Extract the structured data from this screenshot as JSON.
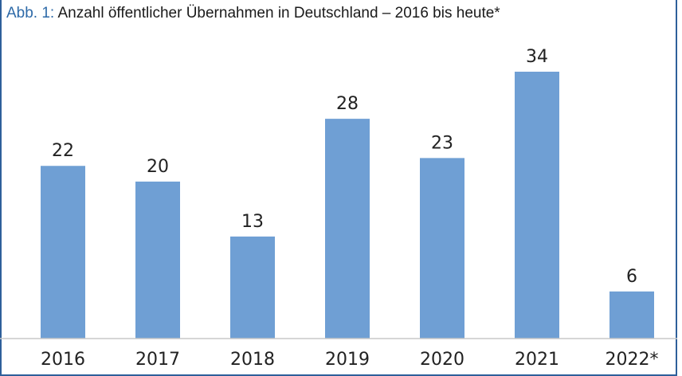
{
  "chart_data": {
    "type": "bar",
    "title_prefix": "Abb. 1:",
    "title": "Anzahl öffentlicher Übernahmen in Deutschland – 2016 bis heute*",
    "categories": [
      "2016",
      "2017",
      "2018",
      "2019",
      "2020",
      "2021",
      "2022*"
    ],
    "values": [
      22,
      20,
      13,
      28,
      23,
      34,
      6
    ],
    "xlabel": "",
    "ylabel": "",
    "ylim": [
      0,
      34
    ],
    "grid": false,
    "legend": "none",
    "bar_color": "#6f9fd4",
    "frame_color": "#2e5f9a"
  }
}
